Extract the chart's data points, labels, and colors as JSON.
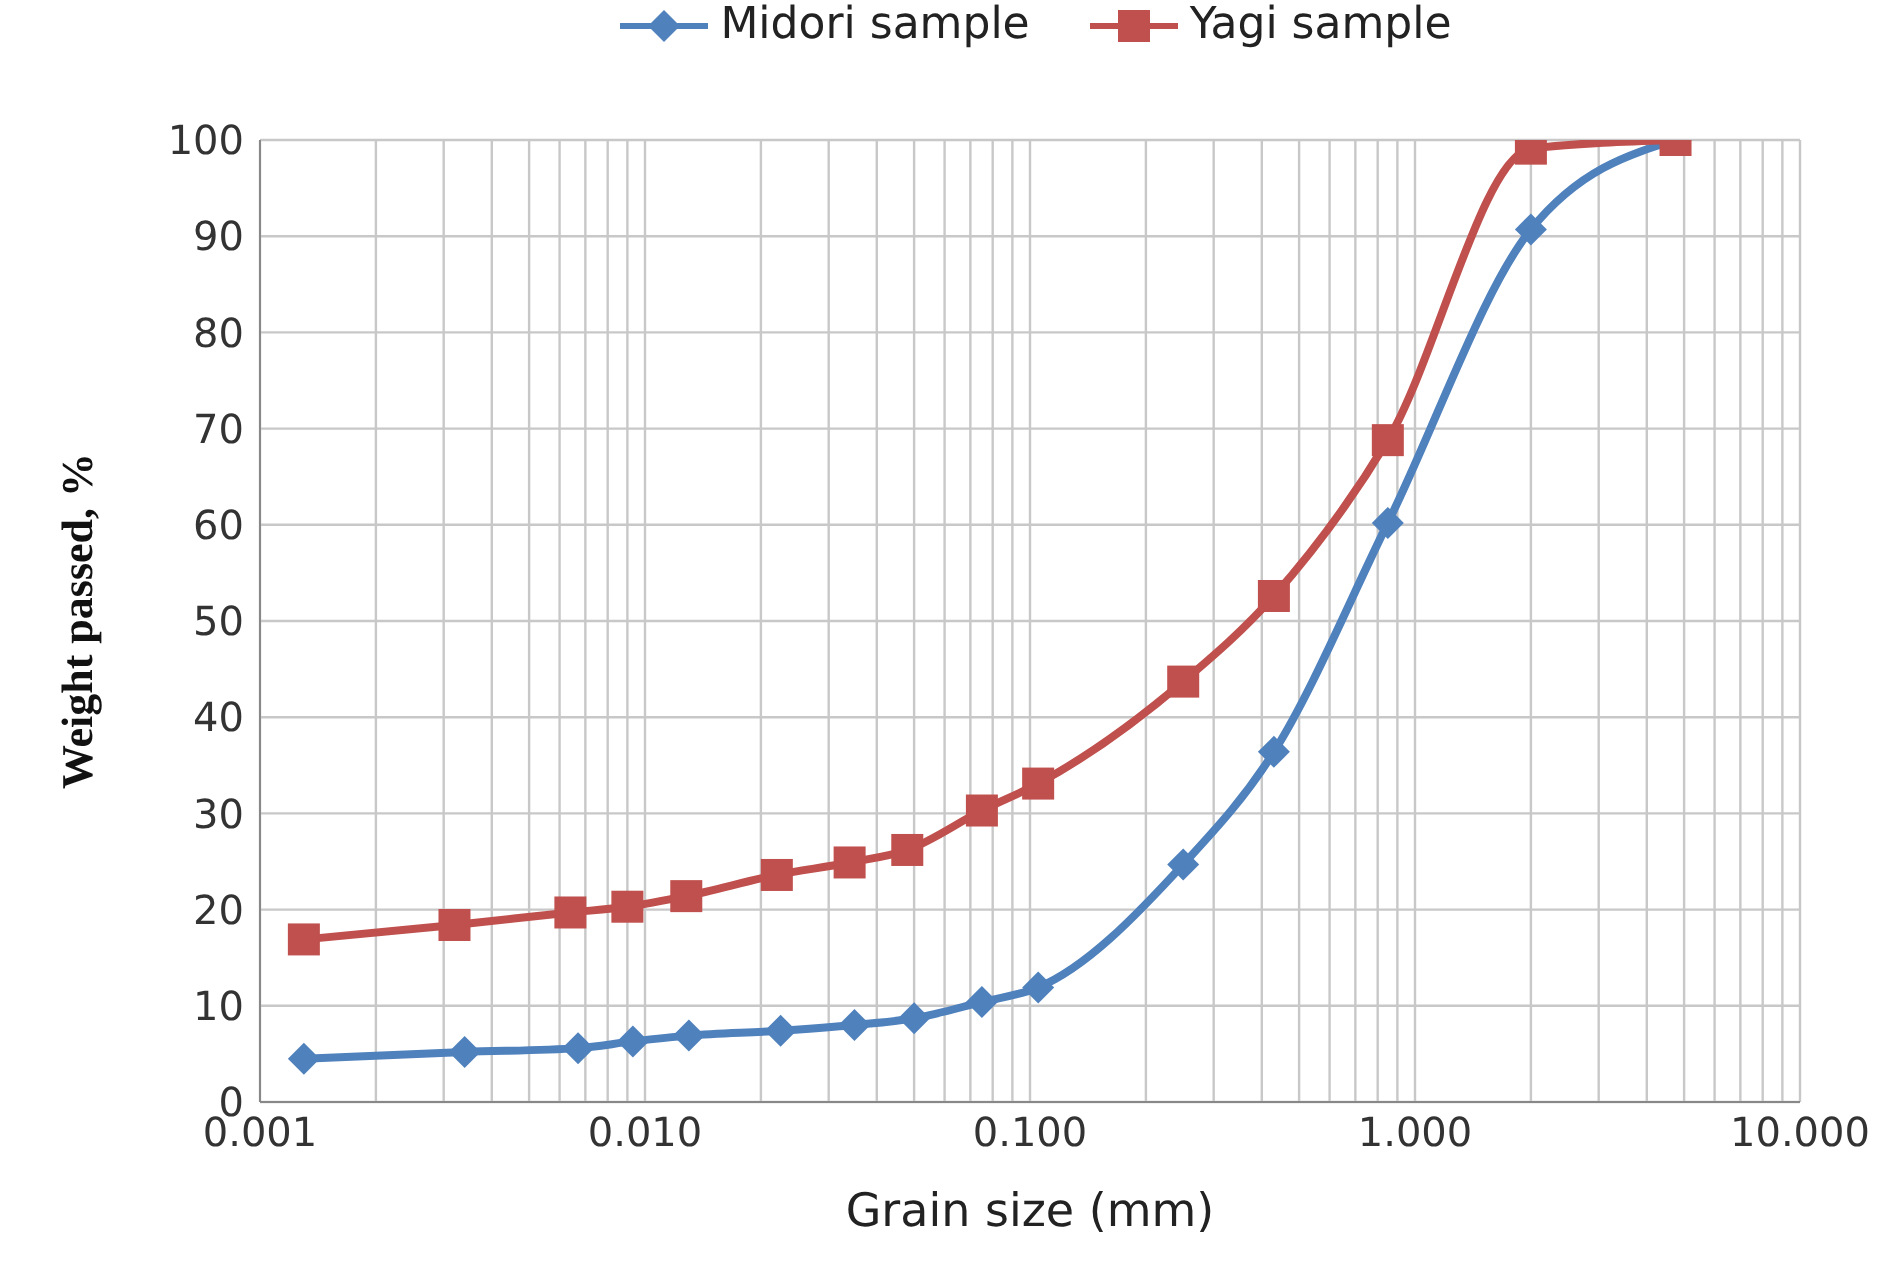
{
  "chart_data": {
    "type": "line",
    "xlabel": "Grain size (mm)",
    "ylabel": "Weight passed, %",
    "log": "x",
    "grid": true,
    "legend": "top",
    "line_style": "solid",
    "xlim": [
      0.001,
      10
    ],
    "xticks": [
      {
        "value": 0.001,
        "label": "0.001"
      },
      {
        "value": 0.002,
        "label": null
      },
      {
        "value": 0.003,
        "label": null
      },
      {
        "value": 0.004,
        "label": null
      },
      {
        "value": 0.005,
        "label": null
      },
      {
        "value": 0.006,
        "label": null
      },
      {
        "value": 0.007,
        "label": null
      },
      {
        "value": 0.008,
        "label": null
      },
      {
        "value": 0.009,
        "label": null
      },
      {
        "value": 0.01,
        "label": "0.010"
      },
      {
        "value": 0.02,
        "label": null
      },
      {
        "value": 0.03,
        "label": null
      },
      {
        "value": 0.04,
        "label": null
      },
      {
        "value": 0.05,
        "label": null
      },
      {
        "value": 0.06,
        "label": null
      },
      {
        "value": 0.07,
        "label": null
      },
      {
        "value": 0.08,
        "label": null
      },
      {
        "value": 0.09,
        "label": null
      },
      {
        "value": 0.1,
        "label": "0.100"
      },
      {
        "value": 0.2,
        "label": null
      },
      {
        "value": 0.3,
        "label": null
      },
      {
        "value": 0.4,
        "label": null
      },
      {
        "value": 0.5,
        "label": null
      },
      {
        "value": 0.6,
        "label": null
      },
      {
        "value": 0.7,
        "label": null
      },
      {
        "value": 0.8,
        "label": null
      },
      {
        "value": 0.9,
        "label": null
      },
      {
        "value": 1,
        "label": "1.000"
      },
      {
        "value": 2,
        "label": null
      },
      {
        "value": 3,
        "label": null
      },
      {
        "value": 4,
        "label": null
      },
      {
        "value": 5,
        "label": null
      },
      {
        "value": 6,
        "label": null
      },
      {
        "value": 7,
        "label": null
      },
      {
        "value": 8,
        "label": null
      },
      {
        "value": 9,
        "label": null
      },
      {
        "value": 10,
        "label": "10.000"
      }
    ],
    "ylim": [
      0,
      100
    ],
    "yticks": [
      0,
      10,
      20,
      30,
      40,
      50,
      60,
      70,
      80,
      90,
      100
    ],
    "series": [
      {
        "name": "Midori sample",
        "color": "#4f81bd",
        "marker": "diamond",
        "x": [
          0.0013,
          0.0034,
          0.0067,
          0.0093,
          0.013,
          0.0225,
          0.035,
          0.05,
          0.075,
          0.105,
          0.25,
          0.43,
          0.85,
          2.0,
          4.75
        ],
        "values": [
          4.5,
          5.2,
          5.6,
          6.3,
          6.9,
          7.4,
          8.0,
          8.7,
          10.4,
          11.9,
          24.7,
          36.4,
          60.2,
          90.7,
          100
        ]
      },
      {
        "name": "Yagi sample",
        "color": "#c0504d",
        "marker": "square",
        "x": [
          0.0013,
          0.0032,
          0.0064,
          0.009,
          0.0128,
          0.022,
          0.034,
          0.048,
          0.075,
          0.105,
          0.25,
          0.43,
          0.85,
          2.0,
          4.75
        ],
        "values": [
          16.9,
          18.4,
          19.7,
          20.3,
          21.4,
          23.6,
          24.9,
          26.2,
          30.3,
          33.1,
          43.7,
          52.6,
          68.8,
          99.1,
          100
        ]
      }
    ]
  }
}
